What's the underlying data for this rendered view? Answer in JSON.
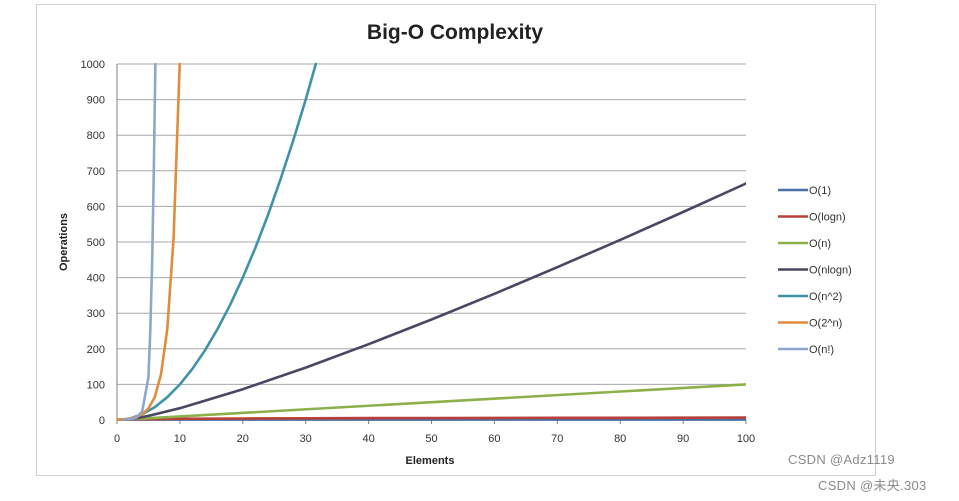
{
  "chart_data": {
    "type": "line",
    "title": "Big-O Complexity",
    "xlabel": "Elements",
    "ylabel": "Operations",
    "xlim": [
      0,
      100
    ],
    "ylim": [
      0,
      1000
    ],
    "x_ticks": [
      0,
      10,
      20,
      30,
      40,
      50,
      60,
      70,
      80,
      90,
      100
    ],
    "y_ticks": [
      0,
      100,
      200,
      300,
      400,
      500,
      600,
      700,
      800,
      900,
      1000
    ],
    "grid": "horizontal",
    "legend_position": "right",
    "series": [
      {
        "name": "O(1)",
        "color": "#4a6fa5",
        "x": [
          0,
          100
        ],
        "y": [
          1,
          1
        ]
      },
      {
        "name": "O(logn)",
        "color": "#b9403a",
        "x": [
          1,
          2,
          5,
          10,
          20,
          30,
          40,
          50,
          60,
          70,
          80,
          90,
          100
        ],
        "y": [
          0,
          1,
          2.32,
          3.32,
          4.32,
          4.91,
          5.32,
          5.64,
          5.91,
          6.13,
          6.32,
          6.49,
          6.64
        ]
      },
      {
        "name": "O(n)",
        "color": "#8db04a",
        "x": [
          0,
          100
        ],
        "y": [
          0,
          100
        ]
      },
      {
        "name": "O(nlogn)",
        "color": "#4d4563",
        "x": [
          1,
          2,
          3,
          5,
          10,
          20,
          30,
          40,
          50,
          60,
          70,
          80,
          90,
          100
        ],
        "y": [
          0,
          2,
          4.75,
          11.6,
          33.2,
          86.4,
          147.2,
          212.9,
          282.2,
          354.4,
          429.1,
          505.8,
          584.3,
          664.4
        ]
      },
      {
        "name": "O(n^2)",
        "color": "#3f93a6",
        "x": [
          0,
          2,
          4,
          6,
          8,
          10,
          12,
          14,
          16,
          18,
          20,
          22,
          24,
          26,
          28,
          30,
          31.6
        ],
        "y": [
          0,
          4,
          16,
          36,
          64,
          100,
          144,
          196,
          256,
          324,
          400,
          484,
          576,
          676,
          784,
          900,
          1000
        ]
      },
      {
        "name": "O(2^n)",
        "color": "#e08c3c",
        "x": [
          0,
          1,
          2,
          3,
          4,
          5,
          6,
          7,
          8,
          9,
          9.97
        ],
        "y": [
          1,
          2,
          4,
          8,
          16,
          32,
          64,
          128,
          256,
          512,
          1000
        ]
      },
      {
        "name": "O(n!)",
        "color": "#8fa6cc",
        "x": [
          1,
          2,
          3,
          4,
          5,
          5.3,
          5.6,
          5.85,
          6.1
        ],
        "y": [
          1,
          2,
          6,
          24,
          120,
          250,
          450,
          700,
          1000
        ]
      }
    ]
  },
  "watermarks": [
    "CSDN @Adz1119",
    "CSDN @未央.303"
  ]
}
